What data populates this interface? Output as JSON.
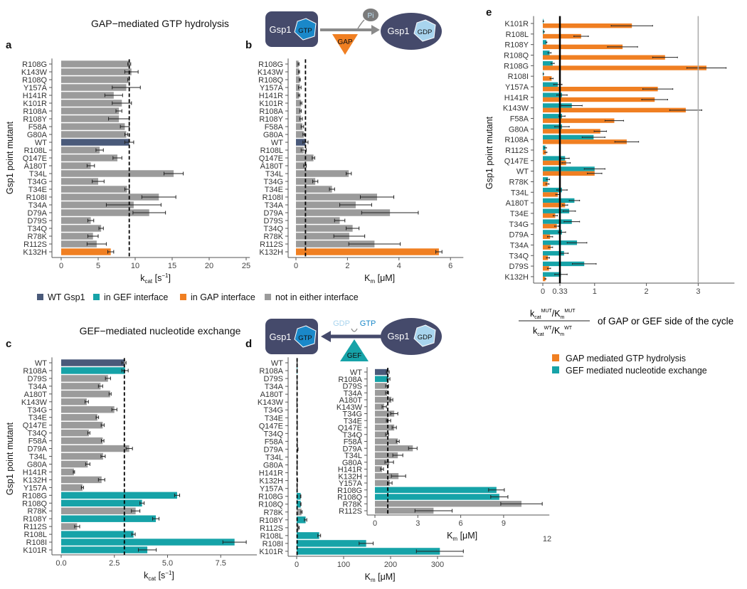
{
  "colors": {
    "wt": "#4a5a7a",
    "gef": "#16a3a8",
    "gap": "#f07f22",
    "none": "#9b9b9b",
    "navy": "#454a6b",
    "gtp": "#1a88c9",
    "gdp": "#a8d4ee"
  },
  "titles": {
    "gap": "GAP−mediated GTP hydrolysis",
    "gef": "GEF−mediated nucleotide exchange"
  },
  "diagram": {
    "gsp1": "Gsp1",
    "gtp": "GTP",
    "gdp": "GDP",
    "pi": "Pi",
    "gap": "GAP",
    "gef": "GEF"
  },
  "legend_main": [
    {
      "label": "WT Gsp1",
      "group": "wt"
    },
    {
      "label": "in GEF interface",
      "group": "gef"
    },
    {
      "label": "in GAP interface",
      "group": "gap"
    },
    {
      "label": "not in either interface",
      "group": "none"
    }
  ],
  "legend_e": [
    {
      "label": "GAP mediated GTP hydrolysis",
      "group": "gap"
    },
    {
      "label": "GEF mediated nucleotide exchange",
      "group": "gef"
    }
  ],
  "e_formula": {
    "num_a": "k",
    "num_a_sub": "cat",
    "num_a_sup": "MUT",
    "num_b": "/K",
    "num_b_sub": "m",
    "num_b_sup": "MUT",
    "den_a": "k",
    "den_a_sub": "cat",
    "den_a_sup": "WT",
    "den_b": "/K",
    "den_b_sub": "m",
    "den_b_sup": "WT",
    "suffix": "of GAP or GEF side of the cycle"
  },
  "stray_label": "12",
  "chart_data": [
    {
      "id": "a",
      "panel_label": "a",
      "type": "bar",
      "orientation": "horizontal",
      "ylabel": "Gsp1 point mutant",
      "xlabel": "k",
      "xlabel_sub": "cat",
      "xlabel_rest": " [s",
      "xlabel_sup": "−1",
      "xlabel_end": "]",
      "xlim": [
        0,
        25.5
      ],
      "xticks": [
        0,
        5,
        10,
        15,
        20,
        25
      ],
      "ref_line": 9.2,
      "categories": [
        "R108G",
        "K143W",
        "R108Q",
        "Y157A",
        "H141R",
        "K101R",
        "R108A",
        "R108Y",
        "F58A",
        "G80A",
        "WT",
        "R108L",
        "Q147E",
        "A180T",
        "T34L",
        "T34G",
        "T34E",
        "R108I",
        "T34A",
        "D79A",
        "D79S",
        "T34Q",
        "R78K",
        "R112S",
        "K132H"
      ],
      "values": [
        9.2,
        9.5,
        9.1,
        8.8,
        7.1,
        8.2,
        7.8,
        7.8,
        8.6,
        8.8,
        9.2,
        5.2,
        7.6,
        4.0,
        15.2,
        5.0,
        8.9,
        13.2,
        9.8,
        11.9,
        4.0,
        5.4,
        4.3,
        4.8,
        6.7
      ],
      "errors": [
        0.2,
        0.9,
        0.1,
        1.9,
        1.2,
        1.3,
        0.4,
        1.4,
        0.6,
        0.2,
        0.6,
        0.5,
        0.6,
        0.5,
        1.3,
        0.8,
        0.3,
        2.3,
        3.7,
        2.2,
        0.4,
        0.3,
        0.7,
        1.3,
        0.4
      ],
      "groups": [
        "none",
        "none",
        "none",
        "none",
        "none",
        "none",
        "none",
        "none",
        "none",
        "none",
        "wt",
        "none",
        "none",
        "none",
        "none",
        "none",
        "none",
        "none",
        "none",
        "none",
        "none",
        "none",
        "none",
        "none",
        "gap"
      ]
    },
    {
      "id": "b",
      "panel_label": "b",
      "type": "bar",
      "orientation": "horizontal",
      "ylabel": "",
      "xlabel": "K",
      "xlabel_sub": "m",
      "xlabel_rest": " [μM]",
      "xlabel_sup": "",
      "xlabel_end": "",
      "xlim": [
        0,
        6.5
      ],
      "xticks": [
        0,
        2,
        4,
        6
      ],
      "ref_line": 0.37,
      "categories": [
        "R108G",
        "K143W",
        "R108Q",
        "Y157A",
        "H141R",
        "K101R",
        "R108A",
        "R108Y",
        "F58A",
        "G80A",
        "WT",
        "R108L",
        "Q147E",
        "A180T",
        "T34L",
        "T34G",
        "T34E",
        "R108I",
        "T34A",
        "D79A",
        "D79S",
        "T34Q",
        "R78K",
        "R112S",
        "K132H"
      ],
      "values": [
        0.1,
        0.12,
        0.15,
        0.15,
        0.12,
        0.2,
        0.18,
        0.2,
        0.25,
        0.3,
        0.37,
        0.3,
        0.68,
        0.35,
        2.05,
        0.75,
        1.4,
        3.15,
        2.32,
        3.65,
        1.7,
        2.2,
        2.07,
        3.05,
        5.55
      ],
      "errors": [
        0.02,
        0.02,
        0.02,
        0.05,
        0.03,
        0.03,
        0.03,
        0.05,
        0.05,
        0.03,
        0.1,
        0.1,
        0.05,
        0.05,
        0.1,
        0.1,
        0.1,
        0.65,
        0.62,
        1.1,
        0.2,
        0.25,
        0.6,
        1.0,
        0.12
      ],
      "groups": [
        "none",
        "none",
        "none",
        "none",
        "none",
        "none",
        "none",
        "none",
        "none",
        "none",
        "wt",
        "none",
        "none",
        "none",
        "none",
        "none",
        "none",
        "none",
        "none",
        "none",
        "none",
        "none",
        "none",
        "none",
        "gap"
      ]
    },
    {
      "id": "c",
      "panel_label": "c",
      "type": "bar",
      "orientation": "horizontal",
      "ylabel": "Gsp1 point mutant",
      "xlabel": "k",
      "xlabel_sub": "cat",
      "xlabel_rest": " [s",
      "xlabel_sup": "−1",
      "xlabel_end": "]",
      "xlim": [
        0,
        9.2
      ],
      "xticks": [
        "0.0",
        "2.5",
        "5.0",
        "7.5"
      ],
      "ref_line": 2.97,
      "categories": [
        "WT",
        "R108A",
        "D79S",
        "T34A",
        "A180T",
        "K143W",
        "T34G",
        "T34E",
        "Q147E",
        "T34Q",
        "F58A",
        "D79A",
        "T34L",
        "G80A",
        "H141R",
        "K132H",
        "Y157A",
        "R108G",
        "R108Q",
        "R78K",
        "R108Y",
        "R112S",
        "R108L",
        "R108I",
        "K101R"
      ],
      "values": [
        2.95,
        3.0,
        2.2,
        1.85,
        2.3,
        1.2,
        2.5,
        1.7,
        1.95,
        1.3,
        1.95,
        3.2,
        1.97,
        1.25,
        0.6,
        1.9,
        1.0,
        5.45,
        3.8,
        3.5,
        4.45,
        0.75,
        3.4,
        8.15,
        4.05
      ],
      "errors": [
        0.1,
        0.15,
        0.12,
        0.1,
        0.05,
        0.08,
        0.12,
        0.06,
        0.07,
        0.05,
        0.06,
        0.15,
        0.1,
        0.1,
        0.03,
        0.15,
        0.05,
        0.12,
        0.1,
        0.2,
        0.15,
        0.12,
        0.08,
        0.55,
        0.42
      ],
      "groups": [
        "wt",
        "gef",
        "none",
        "none",
        "none",
        "none",
        "none",
        "none",
        "none",
        "none",
        "none",
        "none",
        "none",
        "none",
        "none",
        "none",
        "none",
        "gef",
        "gef",
        "none",
        "gef",
        "none",
        "gef",
        "gef",
        "gef"
      ]
    },
    {
      "id": "d",
      "panel_label": "d",
      "type": "bar",
      "orientation": "horizontal",
      "ylabel": "",
      "xlabel": "K",
      "xlabel_sub": "m",
      "xlabel_rest": " [μM]",
      "xlabel_sup": "",
      "xlabel_end": "",
      "xlim": [
        0,
        355
      ],
      "xticks": [
        0,
        100,
        200,
        300
      ],
      "ref_line": 0.9,
      "categories": [
        "WT",
        "R108A",
        "D79S",
        "T34A",
        "A180T",
        "K143W",
        "T34G",
        "T34E",
        "Q147E",
        "T34Q",
        "F58A",
        "D79A",
        "T34L",
        "G80A",
        "H141R",
        "K132H",
        "Y157A",
        "R108G",
        "R108Q",
        "R78K",
        "R108Y",
        "R112S",
        "R108L",
        "R108I",
        "K101R"
      ],
      "values": [
        0.9,
        0.95,
        0.85,
        0.85,
        1.15,
        0.65,
        1.35,
        0.95,
        1.35,
        0.85,
        1.6,
        2.65,
        1.6,
        1.0,
        0.5,
        1.65,
        1.05,
        8.5,
        8.7,
        10.2,
        19,
        4.1,
        48,
        148,
        305
      ],
      "errors": [
        0.1,
        0.1,
        0.1,
        0.1,
        0.1,
        0.1,
        0.2,
        0.1,
        0.1,
        0.1,
        0.1,
        0.3,
        0.2,
        0.2,
        0.1,
        0.4,
        0.1,
        0.5,
        0.6,
        1.4,
        2.5,
        1.2,
        3,
        15,
        50
      ],
      "groups": [
        "wt",
        "gef",
        "none",
        "none",
        "none",
        "none",
        "none",
        "none",
        "none",
        "none",
        "none",
        "none",
        "none",
        "none",
        "none",
        "none",
        "none",
        "gef",
        "gef",
        "none",
        "gef",
        "none",
        "gef",
        "gef",
        "gef"
      ]
    },
    {
      "id": "d_inset",
      "panel_label": "",
      "type": "bar",
      "orientation": "horizontal",
      "ylabel": "",
      "xlabel": "K",
      "xlabel_sub": "m",
      "xlabel_rest": " [μM]",
      "xlabel_sup": "",
      "xlabel_end": "",
      "xlim": [
        0,
        12.2
      ],
      "xticks": [
        0,
        3,
        6,
        9
      ],
      "ref_line": 0.9,
      "categories": [
        "WT",
        "R108A",
        "D79S",
        "T34A",
        "A180T",
        "K143W",
        "T34G",
        "T34E",
        "Q147E",
        "T34Q",
        "F58A",
        "D79A",
        "T34L",
        "G80A",
        "H141R",
        "K132H",
        "Y157A",
        "R108G",
        "R108Q",
        "R78K",
        "R112S"
      ],
      "values": [
        0.9,
        0.95,
        0.85,
        0.85,
        1.15,
        0.65,
        1.35,
        0.95,
        1.35,
        0.85,
        1.6,
        2.65,
        1.6,
        1.0,
        0.5,
        1.65,
        1.05,
        8.5,
        8.7,
        10.25,
        4.1
      ],
      "errors": [
        0.1,
        0.1,
        0.1,
        0.1,
        0.1,
        0.15,
        0.25,
        0.15,
        0.15,
        0.1,
        0.1,
        0.3,
        0.35,
        0.3,
        0.1,
        0.5,
        0.15,
        0.55,
        0.6,
        1.45,
        1.3
      ],
      "groups": [
        "wt",
        "gef",
        "none",
        "none",
        "none",
        "none",
        "none",
        "none",
        "none",
        "none",
        "none",
        "none",
        "none",
        "none",
        "none",
        "none",
        "none",
        "gef",
        "gef",
        "none",
        "none"
      ],
      "label_groups": [
        "wt",
        "gef",
        "none",
        "none",
        "none",
        "none",
        "none",
        "none",
        "none",
        "none",
        "none",
        "none",
        "none",
        "none",
        "none",
        "none",
        "gef",
        "none",
        "gef",
        "none",
        "none"
      ]
    },
    {
      "id": "e",
      "panel_label": "e",
      "type": "bar",
      "orientation": "horizontal-grouped",
      "ylabel": "Gsp1 point mutant",
      "xlim": [
        0,
        3.7
      ],
      "xticks": [
        "0",
        "0.33",
        "1",
        "2",
        "3"
      ],
      "xtick_values": [
        0,
        0.33,
        1,
        2,
        3
      ],
      "ref_line": 0.33,
      "ref_line_2": 3,
      "categories": [
        "K101R",
        "R108L",
        "R108Y",
        "R108Q",
        "R108G",
        "R108I",
        "Y157A",
        "H141R",
        "K143W",
        "F58A",
        "G80A",
        "R108A",
        "R112S",
        "Q147E",
        "WT",
        "R78K",
        "T34L",
        "A180T",
        "T34E",
        "T34G",
        "D79A",
        "T34A",
        "T34Q",
        "D79S",
        "K132H"
      ],
      "series": [
        {
          "name": "GEF mediated nucleotide exchange",
          "group": "gef",
          "values": [
            0.01,
            0.02,
            0.07,
            0.13,
            0.19,
            0.01,
            0.29,
            0.37,
            0.56,
            0.37,
            0.37,
            0.98,
            0.05,
            0.43,
            1.0,
            0.1,
            0.37,
            0.61,
            0.51,
            0.56,
            0.37,
            0.66,
            0.41,
            0.8,
            0.35
          ],
          "errors": [
            0.005,
            0.01,
            0.01,
            0.03,
            0.03,
            0.005,
            0.08,
            0.1,
            0.2,
            0.06,
            0.14,
            0.22,
            0.02,
            0.08,
            0.2,
            0.03,
            0.1,
            0.1,
            0.12,
            0.15,
            0.07,
            0.19,
            0.08,
            0.23,
            0.12
          ]
        },
        {
          "name": "GAP mediated GTP hydrolysis",
          "group": "gap",
          "values": [
            1.72,
            0.74,
            1.54,
            2.36,
            3.16,
            0.17,
            2.22,
            2.16,
            2.76,
            1.38,
            1.11,
            1.62,
            0.06,
            0.45,
            1.0,
            0.09,
            0.29,
            0.43,
            0.24,
            0.27,
            0.14,
            0.15,
            0.1,
            0.12,
            0.05
          ],
          "errors": [
            0.4,
            0.14,
            0.29,
            0.24,
            0.38,
            0.03,
            0.29,
            0.25,
            0.31,
            0.18,
            0.12,
            0.23,
            0.02,
            0.08,
            0.14,
            0.03,
            0.04,
            0.05,
            0.04,
            0.04,
            0.05,
            0.04,
            0.03,
            0.03,
            0.01
          ]
        }
      ]
    }
  ]
}
